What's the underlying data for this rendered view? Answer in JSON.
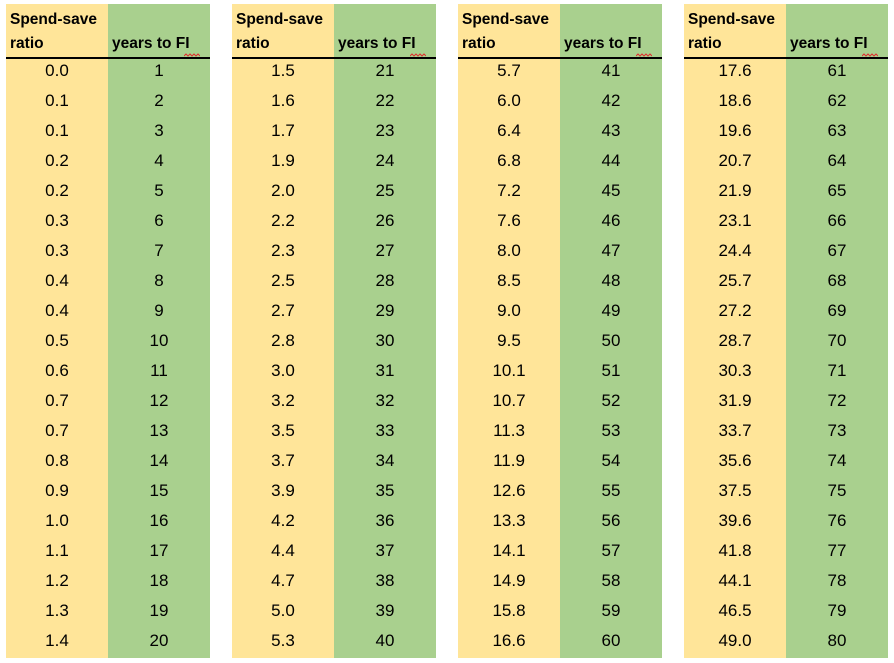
{
  "header": {
    "ratio_label": "Spend-save\nratio",
    "years_label": "years to FI"
  },
  "colors": {
    "ratio_column": "#ffe599",
    "years_column": "#a9d08e",
    "spellcheck_underline": "#e03030"
  },
  "tables": [
    {
      "rows": [
        {
          "ratio": "0.0",
          "years": "1"
        },
        {
          "ratio": "0.1",
          "years": "2"
        },
        {
          "ratio": "0.1",
          "years": "3"
        },
        {
          "ratio": "0.2",
          "years": "4"
        },
        {
          "ratio": "0.2",
          "years": "5"
        },
        {
          "ratio": "0.3",
          "years": "6"
        },
        {
          "ratio": "0.3",
          "years": "7"
        },
        {
          "ratio": "0.4",
          "years": "8"
        },
        {
          "ratio": "0.4",
          "years": "9"
        },
        {
          "ratio": "0.5",
          "years": "10"
        },
        {
          "ratio": "0.6",
          "years": "11"
        },
        {
          "ratio": "0.7",
          "years": "12"
        },
        {
          "ratio": "0.7",
          "years": "13"
        },
        {
          "ratio": "0.8",
          "years": "14"
        },
        {
          "ratio": "0.9",
          "years": "15"
        },
        {
          "ratio": "1.0",
          "years": "16"
        },
        {
          "ratio": "1.1",
          "years": "17"
        },
        {
          "ratio": "1.2",
          "years": "18"
        },
        {
          "ratio": "1.3",
          "years": "19"
        },
        {
          "ratio": "1.4",
          "years": "20"
        }
      ]
    },
    {
      "rows": [
        {
          "ratio": "1.5",
          "years": "21"
        },
        {
          "ratio": "1.6",
          "years": "22"
        },
        {
          "ratio": "1.7",
          "years": "23"
        },
        {
          "ratio": "1.9",
          "years": "24"
        },
        {
          "ratio": "2.0",
          "years": "25"
        },
        {
          "ratio": "2.2",
          "years": "26"
        },
        {
          "ratio": "2.3",
          "years": "27"
        },
        {
          "ratio": "2.5",
          "years": "28"
        },
        {
          "ratio": "2.7",
          "years": "29"
        },
        {
          "ratio": "2.8",
          "years": "30"
        },
        {
          "ratio": "3.0",
          "years": "31"
        },
        {
          "ratio": "3.2",
          "years": "32"
        },
        {
          "ratio": "3.5",
          "years": "33"
        },
        {
          "ratio": "3.7",
          "years": "34"
        },
        {
          "ratio": "3.9",
          "years": "35"
        },
        {
          "ratio": "4.2",
          "years": "36"
        },
        {
          "ratio": "4.4",
          "years": "37"
        },
        {
          "ratio": "4.7",
          "years": "38"
        },
        {
          "ratio": "5.0",
          "years": "39"
        },
        {
          "ratio": "5.3",
          "years": "40"
        }
      ]
    },
    {
      "rows": [
        {
          "ratio": "5.7",
          "years": "41"
        },
        {
          "ratio": "6.0",
          "years": "42"
        },
        {
          "ratio": "6.4",
          "years": "43"
        },
        {
          "ratio": "6.8",
          "years": "44"
        },
        {
          "ratio": "7.2",
          "years": "45"
        },
        {
          "ratio": "7.6",
          "years": "46"
        },
        {
          "ratio": "8.0",
          "years": "47"
        },
        {
          "ratio": "8.5",
          "years": "48"
        },
        {
          "ratio": "9.0",
          "years": "49"
        },
        {
          "ratio": "9.5",
          "years": "50"
        },
        {
          "ratio": "10.1",
          "years": "51"
        },
        {
          "ratio": "10.7",
          "years": "52"
        },
        {
          "ratio": "11.3",
          "years": "53"
        },
        {
          "ratio": "11.9",
          "years": "54"
        },
        {
          "ratio": "12.6",
          "years": "55"
        },
        {
          "ratio": "13.3",
          "years": "56"
        },
        {
          "ratio": "14.1",
          "years": "57"
        },
        {
          "ratio": "14.9",
          "years": "58"
        },
        {
          "ratio": "15.8",
          "years": "59"
        },
        {
          "ratio": "16.6",
          "years": "60"
        }
      ]
    },
    {
      "rows": [
        {
          "ratio": "17.6",
          "years": "61"
        },
        {
          "ratio": "18.6",
          "years": "62"
        },
        {
          "ratio": "19.6",
          "years": "63"
        },
        {
          "ratio": "20.7",
          "years": "64"
        },
        {
          "ratio": "21.9",
          "years": "65"
        },
        {
          "ratio": "23.1",
          "years": "66"
        },
        {
          "ratio": "24.4",
          "years": "67"
        },
        {
          "ratio": "25.7",
          "years": "68"
        },
        {
          "ratio": "27.2",
          "years": "69"
        },
        {
          "ratio": "28.7",
          "years": "70"
        },
        {
          "ratio": "30.3",
          "years": "71"
        },
        {
          "ratio": "31.9",
          "years": "72"
        },
        {
          "ratio": "33.7",
          "years": "73"
        },
        {
          "ratio": "35.6",
          "years": "74"
        },
        {
          "ratio": "37.5",
          "years": "75"
        },
        {
          "ratio": "39.6",
          "years": "76"
        },
        {
          "ratio": "41.8",
          "years": "77"
        },
        {
          "ratio": "44.1",
          "years": "78"
        },
        {
          "ratio": "46.5",
          "years": "79"
        },
        {
          "ratio": "49.0",
          "years": "80"
        }
      ]
    }
  ]
}
